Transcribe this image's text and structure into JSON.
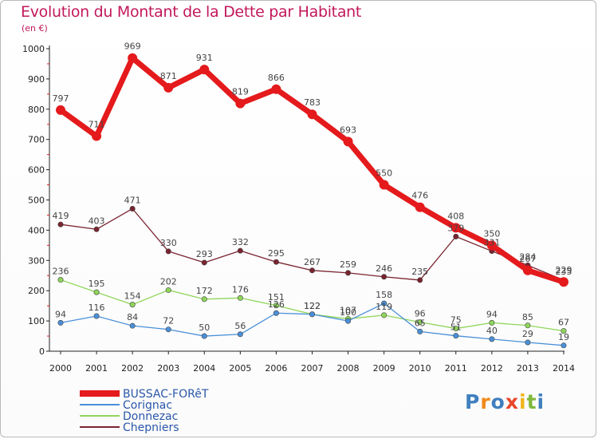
{
  "title": "Evolution du Montant de la Dette par Habitant",
  "unit": "(en €)",
  "logo": {
    "letters": [
      "P",
      "r",
      "o",
      "x",
      "i",
      "t",
      "i"
    ],
    "colors": [
      "#3f7fbf",
      "#f08a1c",
      "#3f7fbf",
      "#e8462a",
      "#f0b51c",
      "#7fb83a",
      "#3f7fbf"
    ]
  },
  "chart_data": {
    "type": "line",
    "x": [
      "2000",
      "2001",
      "2002",
      "2003",
      "2004",
      "2005",
      "2006",
      "2007",
      "2008",
      "2009",
      "2010",
      "2011",
      "2012",
      "2013",
      "2014"
    ],
    "ylim": [
      0,
      1000
    ],
    "yticks": [
      "0",
      "100",
      "200",
      "300",
      "400",
      "500",
      "600",
      "700",
      "800",
      "900",
      "1000"
    ],
    "grid": false,
    "legend": "bottom-left",
    "series": [
      {
        "name": "BUSSAC-FORêT",
        "color": "#e41a1c",
        "values": [
          797,
          711,
          969,
          871,
          931,
          819,
          866,
          783,
          693,
          550,
          476,
          408,
          350,
          267,
          229
        ],
        "labels": [
          "797",
          "711",
          "969",
          "871",
          "931",
          "819",
          "866",
          "783",
          "693",
          "550",
          "476",
          "408",
          "350",
          "267",
          "229"
        ]
      },
      {
        "name": "Corignac",
        "color": "#4a90d9",
        "values": [
          94,
          116,
          84,
          72,
          50,
          56,
          126,
          122,
          100,
          158,
          65,
          51,
          40,
          29,
          19
        ],
        "labels": [
          "94",
          "116",
          "84",
          "72",
          "50",
          "56",
          "126",
          "122",
          "100",
          "158",
          "65",
          "51",
          "40",
          "29",
          "19"
        ]
      },
      {
        "name": "Donnezac",
        "color": "#8fd65a",
        "values": [
          236,
          195,
          154,
          202,
          172,
          176,
          151,
          122,
          107,
          119,
          96,
          75,
          94,
          85,
          67
        ],
        "labels": [
          "236",
          "195",
          "154",
          "202",
          "172",
          "176",
          "151",
          "122",
          "107",
          "119",
          "96",
          "75",
          "94",
          "85",
          "67"
        ]
      },
      {
        "name": "Chepniers",
        "color": "#7a2430",
        "values": [
          419,
          403,
          471,
          330,
          293,
          332,
          295,
          267,
          259,
          246,
          235,
          379,
          331,
          284,
          235
        ],
        "labels": [
          "419",
          "403",
          "471",
          "330",
          "293",
          "332",
          "295",
          "267",
          "259",
          "246",
          "235",
          "379",
          "331",
          "284",
          "235"
        ]
      }
    ]
  }
}
